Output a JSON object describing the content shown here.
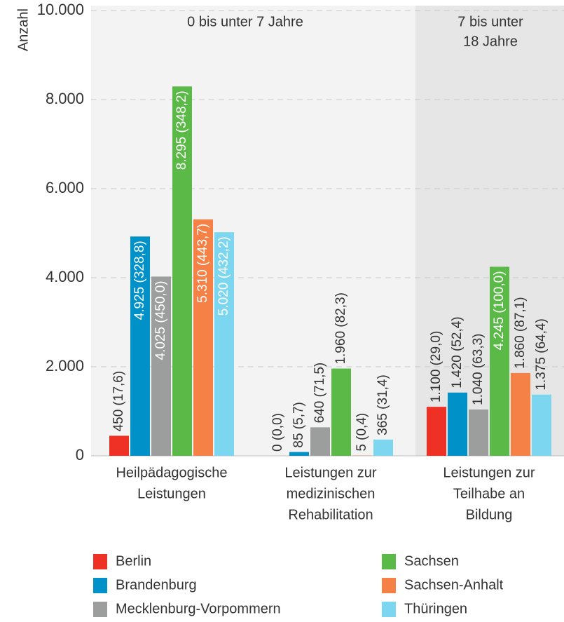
{
  "chart_data": {
    "type": "bar",
    "y_label": "Anzahl",
    "annotations": [
      [
        "0 bis unter 7 Jahre"
      ],
      [
        "7 bis unter",
        "18 Jahre"
      ]
    ],
    "categories": [
      [
        "Heilpädagogische",
        "Leistungen"
      ],
      [
        "Leistungen zur",
        "medizinischen",
        "Rehabilitation"
      ],
      [
        "Leistungen zur",
        "Teilhabe an",
        "Bildung"
      ]
    ],
    "series": [
      {
        "name": "Berlin",
        "color": "#ee3124",
        "values": [
          450,
          0,
          1100
        ],
        "value_labels": [
          "450 (17,6)",
          "0 (0,0)",
          "1.100 (29,0)"
        ]
      },
      {
        "name": "Brandenburg",
        "color": "#0091c9",
        "values": [
          4925,
          85,
          1420
        ],
        "value_labels": [
          "4.925 (328,8)",
          "85 (5,7)",
          "1.420 (52,4)"
        ]
      },
      {
        "name": "Mecklenburg-Vorpommern",
        "color": "#9c9d9d",
        "values": [
          4025,
          640,
          1040
        ],
        "value_labels": [
          "4.025 (450,0)",
          "640 (71,5)",
          "1.040 (63,3)"
        ]
      },
      {
        "name": "Sachsen",
        "color": "#5bb947",
        "values": [
          8295,
          1960,
          4245
        ],
        "value_labels": [
          "8.295 (348,2)",
          "1.960 (82,3)",
          "4.245 (100,0)"
        ]
      },
      {
        "name": "Sachsen-Anhalt",
        "color": "#f58146",
        "values": [
          5310,
          5,
          1860
        ],
        "value_labels": [
          "5.310 (443,7)",
          "5 (0,4)",
          "1.860 (87,1)"
        ]
      },
      {
        "name": "Thüringen",
        "color": "#7dd6ef",
        "values": [
          5020,
          365,
          1375
        ],
        "value_labels": [
          "5.020 (432,2)",
          "365 (31,4)",
          "1.375 (64,4)"
        ]
      }
    ],
    "ylim": [
      0,
      10000
    ],
    "yticks": [
      0,
      {
        "value": 2000,
        "label": "2.000"
      },
      {
        "value": 4000,
        "label": "4.000"
      },
      {
        "value": 6000,
        "label": "6.000"
      },
      {
        "value": 8000,
        "label": "8.000"
      },
      {
        "value": 10000,
        "label": "10.000"
      }
    ],
    "grid": true
  }
}
